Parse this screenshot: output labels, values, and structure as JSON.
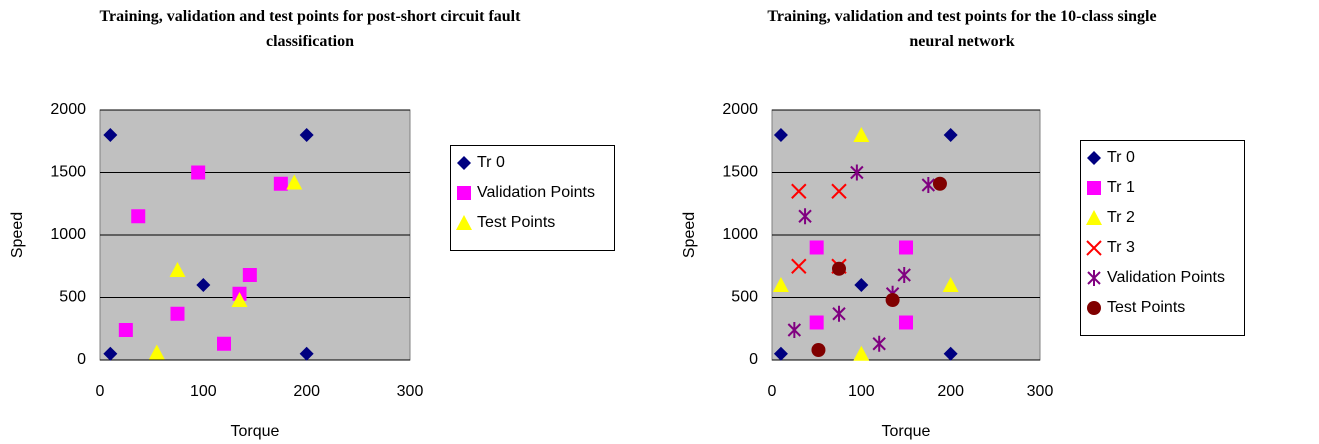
{
  "chart_data": [
    {
      "type": "scatter",
      "title": "Training, validation and test points for post-short circuit fault classification",
      "xlabel": "Torque",
      "ylabel": "Speed",
      "xlim": [
        0,
        300
      ],
      "ylim": [
        0,
        2000
      ],
      "xticks": [
        0,
        100,
        200,
        300
      ],
      "yticks": [
        0,
        500,
        1000,
        1500,
        2000
      ],
      "grid": true,
      "legend": "right",
      "series": [
        {
          "name": "Tr 0",
          "color": "#000080",
          "marker": "diamond",
          "x": [
            10,
            200,
            100,
            10,
            200
          ],
          "y": [
            1800,
            1800,
            600,
            50,
            50
          ]
        },
        {
          "name": "Validation Points",
          "color": "#ff00ff",
          "marker": "square",
          "x": [
            25,
            37,
            95,
            75,
            120,
            135,
            145,
            175
          ],
          "y": [
            240,
            1150,
            1500,
            370,
            130,
            530,
            680,
            1410
          ]
        },
        {
          "name": "Test Points",
          "color": "#ffff00",
          "marker": "triangle",
          "x": [
            55,
            75,
            135,
            188
          ],
          "y": [
            60,
            720,
            480,
            1420
          ]
        }
      ]
    },
    {
      "type": "scatter",
      "title": "Training, validation and test points for the 10-class single neural network",
      "xlabel": "Torque",
      "ylabel": "Speed",
      "xlim": [
        0,
        300
      ],
      "ylim": [
        0,
        2000
      ],
      "xticks": [
        0,
        100,
        200,
        300
      ],
      "yticks": [
        0,
        500,
        1000,
        1500,
        2000
      ],
      "grid": true,
      "legend": "right",
      "series": [
        {
          "name": "Tr 0",
          "color": "#000080",
          "marker": "diamond",
          "x": [
            10,
            200,
            100,
            10,
            200
          ],
          "y": [
            1800,
            1800,
            600,
            50,
            50
          ]
        },
        {
          "name": "Tr 1",
          "color": "#ff00ff",
          "marker": "square",
          "x": [
            50,
            150,
            50,
            150
          ],
          "y": [
            900,
            900,
            300,
            300
          ]
        },
        {
          "name": "Tr 2",
          "color": "#ffff00",
          "marker": "triangle",
          "x": [
            10,
            100,
            100,
            200
          ],
          "y": [
            600,
            1800,
            50,
            600
          ]
        },
        {
          "name": "Tr 3",
          "color": "#ff0000",
          "marker": "x",
          "x": [
            30,
            75,
            30,
            75
          ],
          "y": [
            1350,
            1350,
            750,
            750
          ]
        },
        {
          "name": "Validation Points",
          "color": "#800080",
          "marker": "star",
          "x": [
            25,
            37,
            95,
            75,
            120,
            135,
            148,
            175
          ],
          "y": [
            240,
            1150,
            1500,
            370,
            130,
            530,
            680,
            1400
          ]
        },
        {
          "name": "Test Points",
          "color": "#800000",
          "marker": "circle",
          "x": [
            52,
            75,
            135,
            188
          ],
          "y": [
            80,
            730,
            480,
            1410
          ]
        }
      ]
    }
  ]
}
